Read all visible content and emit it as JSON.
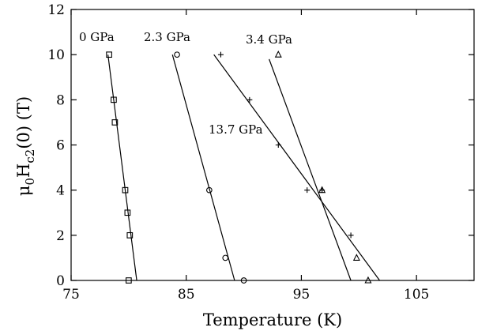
{
  "chart_data": {
    "type": "scatter",
    "title": "",
    "xlabel": "Temperature (K)",
    "ylabel_main": "μ",
    "ylabel_sub1": "0",
    "ylabel_mid": "H",
    "ylabel_sub2": "c2",
    "ylabel_end": "(0) (T)",
    "xlim": [
      75,
      110
    ],
    "ylim": [
      0,
      12
    ],
    "xticks": [
      75,
      85,
      95,
      105
    ],
    "yticks": [
      0,
      2,
      4,
      6,
      8,
      10,
      12
    ],
    "grid": false,
    "series": [
      {
        "label": "0 GPa",
        "marker": "square",
        "points": [
          [
            78.3,
            10
          ],
          [
            78.7,
            8
          ],
          [
            78.8,
            7
          ],
          [
            79.7,
            4
          ],
          [
            79.9,
            3
          ],
          [
            80.1,
            2
          ],
          [
            80.0,
            0
          ]
        ],
        "fit": [
          [
            78.2,
            10
          ],
          [
            80.7,
            0
          ]
        ]
      },
      {
        "label": "2.3 GPa",
        "marker": "circle",
        "points": [
          [
            84.2,
            10
          ],
          [
            87.0,
            4
          ],
          [
            88.4,
            1
          ],
          [
            90.0,
            0
          ]
        ],
        "fit": [
          [
            83.8,
            10
          ],
          [
            89.2,
            0
          ]
        ]
      },
      {
        "label": "3.4 GPa",
        "marker": "triangle",
        "points": [
          [
            93.0,
            10
          ],
          [
            96.8,
            4
          ],
          [
            99.8,
            1
          ],
          [
            100.8,
            0
          ]
        ],
        "fit": [
          [
            92.2,
            9.8
          ],
          [
            99.3,
            0
          ]
        ]
      },
      {
        "label": "13.7 GPa",
        "marker": "plus",
        "points": [
          [
            88.0,
            10
          ],
          [
            90.5,
            8
          ],
          [
            93.0,
            6
          ],
          [
            95.5,
            4
          ],
          [
            96.8,
            4
          ],
          [
            99.3,
            2
          ]
        ],
        "fit": [
          [
            87.4,
            10
          ],
          [
            101.8,
            0
          ]
        ]
      }
    ]
  }
}
